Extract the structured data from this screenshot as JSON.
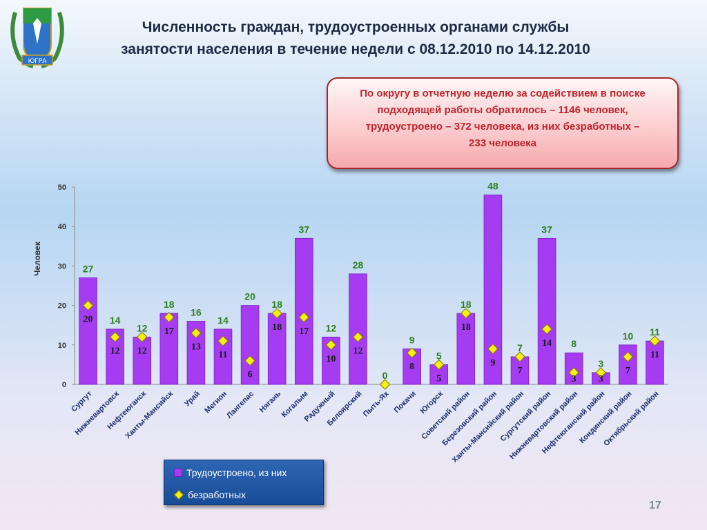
{
  "slide": {
    "title_line1": "Численность граждан, трудоустроенных  органами службы",
    "title_line2": "занятости населения в течение недели с 08.12.2010 по 14.12.2010",
    "callout_line1": "По округу в отчетную неделю за содействием в поиске",
    "callout_line2": "подходящей работы обратилось –  1146 человек,",
    "callout_line3": "трудоустроено – 372 человека, из них безработных –",
    "callout_line4": "233 человека",
    "logo_text": "ЮГРА",
    "page_number": "17"
  },
  "chart_data": {
    "type": "bar",
    "ylabel": "Человек",
    "xlabel": "",
    "ylim": [
      0,
      50
    ],
    "yticks": [
      0,
      10,
      20,
      30,
      40,
      50
    ],
    "grid": false,
    "legend_position": "bottom-left",
    "categories": [
      "Сургут",
      "Нижневартовск",
      "Нефтеюганск",
      "Ханты-Мансийск",
      "Урай",
      "Мегион",
      "Лангепас",
      "Нягань",
      "Когалым",
      "Радужный",
      "Белоярский",
      "Пыть-Ях",
      "Покачи",
      "Югорск",
      "Советский район",
      "Березовский район",
      "Ханты-Мансийский район",
      "Сургутский район",
      "Нижневартовский район",
      "Нефтеюганский район",
      "Кондинский район",
      "Октябрьский район"
    ],
    "series": [
      {
        "name": "Трудоустроено, из них",
        "kind": "bar",
        "color": "#a63cf2",
        "label_color": "#2e7d1f",
        "values": [
          27,
          14,
          12,
          18,
          16,
          14,
          20,
          18,
          37,
          12,
          28,
          0,
          9,
          5,
          18,
          48,
          7,
          37,
          8,
          3,
          10,
          11
        ]
      },
      {
        "name": "безработных",
        "kind": "marker",
        "color": "#f6ef16",
        "label_color": "#1a1a1a",
        "values": [
          20,
          12,
          12,
          17,
          13,
          11,
          6,
          18,
          17,
          10,
          12,
          0,
          8,
          5,
          18,
          9,
          7,
          14,
          3,
          3,
          7,
          11
        ]
      }
    ]
  }
}
